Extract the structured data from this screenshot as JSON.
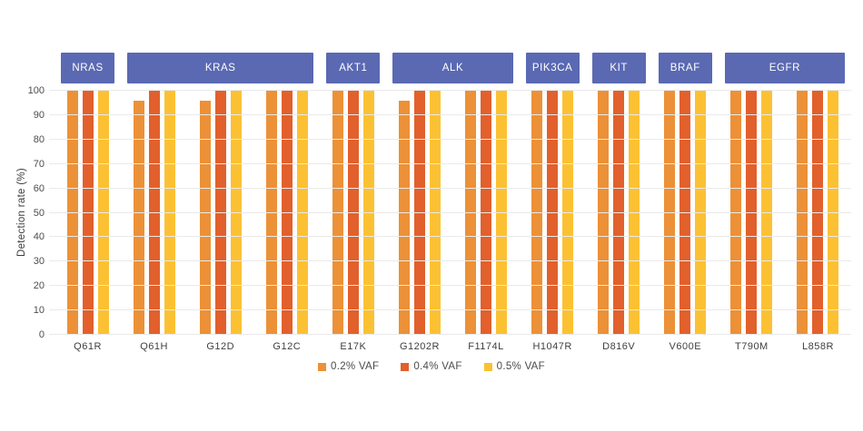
{
  "chart_data": {
    "type": "bar",
    "title": "",
    "xlabel": "",
    "ylabel": "Detection rate (%)",
    "ylim": [
      0,
      100
    ],
    "yticks": [
      0,
      10,
      20,
      30,
      40,
      50,
      60,
      70,
      80,
      90,
      100
    ],
    "grid": true,
    "legend_position": "bottom-center",
    "categories": [
      "Q61R",
      "Q61H",
      "G12D",
      "G12C",
      "E17K",
      "G1202R",
      "F1174L",
      "H1047R",
      "D816V",
      "V600E",
      "T790M",
      "L858R"
    ],
    "gene_groups": [
      {
        "label": "NRAS",
        "start": 0,
        "span": 1
      },
      {
        "label": "KRAS",
        "start": 1,
        "span": 3
      },
      {
        "label": "AKT1",
        "start": 4,
        "span": 1
      },
      {
        "label": "ALK",
        "start": 5,
        "span": 2
      },
      {
        "label": "PIK3CA",
        "start": 7,
        "span": 1
      },
      {
        "label": "KIT",
        "start": 8,
        "span": 1
      },
      {
        "label": "BRAF",
        "start": 9,
        "span": 1
      },
      {
        "label": "EGFR",
        "start": 10,
        "span": 2
      }
    ],
    "series": [
      {
        "name": "0.2% VAF",
        "color": "#EC9137",
        "values": [
          100,
          96,
          96,
          100,
          100,
          96,
          100,
          100,
          100,
          100,
          100,
          100
        ]
      },
      {
        "name": "0.4% VAF",
        "color": "#E2602C",
        "values": [
          100,
          100,
          100,
          100,
          100,
          100,
          100,
          100,
          100,
          100,
          100,
          100
        ]
      },
      {
        "name": "0.5% VAF",
        "color": "#FCC133",
        "values": [
          100,
          100,
          100,
          100,
          100,
          100,
          100,
          100,
          100,
          100,
          100,
          100
        ]
      }
    ]
  },
  "colors": {
    "gene_box_bg": "#5A69B2",
    "gene_box_text": "#FFFFFF",
    "gridline": "#EAEAEA",
    "axis_text": "#4D4D4D"
  }
}
